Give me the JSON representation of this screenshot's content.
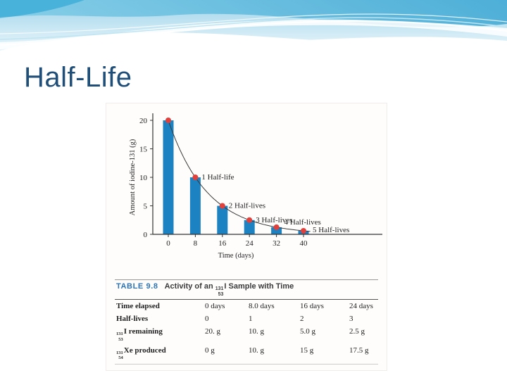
{
  "slide": {
    "title": "Half-Life",
    "title_color": "#1f4e79"
  },
  "chart_data": {
    "type": "bar",
    "x": [
      0,
      8,
      16,
      24,
      32,
      40
    ],
    "values": [
      20,
      10,
      5,
      2.5,
      1.25,
      0.625
    ],
    "xticks": [
      0,
      8,
      16,
      24,
      32,
      40
    ],
    "yticks": [
      0,
      5,
      10,
      15,
      20
    ],
    "xlabel": "Time (days)",
    "ylabel": "Amount of iodine-131 (g)",
    "ylim": [
      0,
      20
    ],
    "half_life_days": 8,
    "annotations": [
      "1 Half-life",
      "2 Half-lives",
      "3 Half-lives",
      "4 Half-lives",
      "5 Half-lives"
    ],
    "bar_color": "#1c82c2",
    "dot_color": "#e2403a",
    "curve_color": "#3a3a3a"
  },
  "table": {
    "label": "TABLE 9.8",
    "label_color": "#2e74b5",
    "title": {
      "prefix": "Activity of an ",
      "isotope": {
        "mass": "131",
        "number": "53",
        "symbol": "I"
      },
      "suffix": " Sample with Time"
    },
    "rows": [
      {
        "isotope": null,
        "label": "Time elapsed",
        "cells": [
          "0 days",
          "8.0 days",
          "16 days",
          "24 days"
        ]
      },
      {
        "isotope": null,
        "label": "Half-lives",
        "cells": [
          "0",
          "1",
          "2",
          "3"
        ]
      },
      {
        "isotope": {
          "mass": "131",
          "number": "53"
        },
        "label": "I remaining",
        "cells": [
          "20. g",
          "10. g",
          "5.0 g",
          "2.5 g"
        ]
      },
      {
        "isotope": {
          "mass": "131",
          "number": "54"
        },
        "label": "Xe produced",
        "cells": [
          "0 g",
          "10. g",
          "15 g",
          "17.5 g"
        ]
      }
    ]
  }
}
